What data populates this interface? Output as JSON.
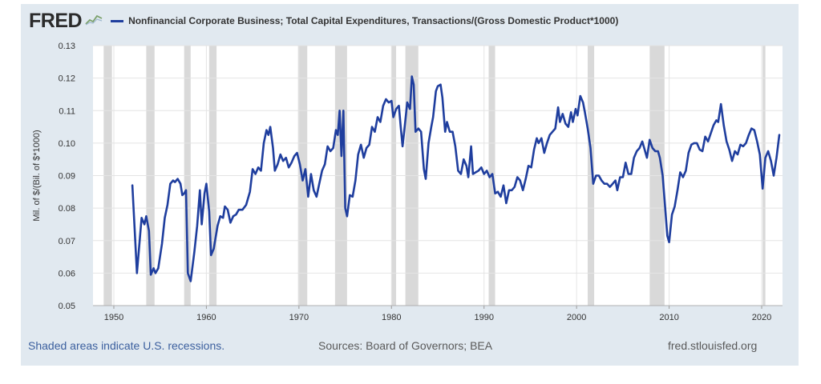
{
  "header": {
    "logo_text": "FRED",
    "series_title": "Nonfinancial Corporate Business; Total Capital Expenditures, Transactions/(Gross Domestic Product*1000)"
  },
  "footer": {
    "recession_note": "Shaded areas indicate U.S. recessions.",
    "sources": "Sources: Board of Governors; BEA",
    "site": "fred.stlouisfed.org"
  },
  "colors": {
    "line": "#1f3e9e",
    "recession": "#d9d9d9",
    "plot_bg": "#ffffff",
    "frame_bg": "#e1e9f0",
    "grid": "#e4e4e4"
  },
  "chart_data": {
    "type": "line",
    "title": "Nonfinancial Corporate Business; Total Capital Expenditures, Transactions/(Gross Domestic Product*1000)",
    "ylabel": "Mil. of $/(Bil. of $*1000)",
    "xlabel": "",
    "xlim": [
      1947.75,
      2022.25
    ],
    "ylim": [
      0.05,
      0.13
    ],
    "x_ticks": [
      1950,
      1960,
      1970,
      1980,
      1990,
      2000,
      2010,
      2020
    ],
    "y_ticks": [
      0.05,
      0.06,
      0.07,
      0.08,
      0.09,
      0.1,
      0.11,
      0.12,
      0.13
    ],
    "y_tick_labels": [
      "0.05",
      "0.06",
      "0.07",
      "0.08",
      "0.09",
      "0.10",
      "0.11",
      "0.12",
      "0.13"
    ],
    "grid": true,
    "recessions": [
      [
        1948.9,
        1949.8
      ],
      [
        1953.5,
        1954.4
      ],
      [
        1957.6,
        1958.3
      ],
      [
        1960.3,
        1961.1
      ],
      [
        1969.9,
        1970.9
      ],
      [
        1973.9,
        1975.2
      ],
      [
        1980.0,
        1980.5
      ],
      [
        1981.5,
        1982.9
      ],
      [
        1990.5,
        1991.2
      ],
      [
        2001.2,
        2001.9
      ],
      [
        2007.9,
        2009.5
      ],
      [
        2020.1,
        2020.4
      ]
    ],
    "series": [
      {
        "name": "Nonfinancial Corporate Business; Total Capital Expenditures, Transactions/(Gross Domestic Product*1000)",
        "points": [
          [
            1952.0,
            0.087
          ],
          [
            1952.5,
            0.06
          ],
          [
            1953.0,
            0.077
          ],
          [
            1953.3,
            0.075
          ],
          [
            1953.5,
            0.0775
          ],
          [
            1953.8,
            0.073
          ],
          [
            1954.0,
            0.0595
          ],
          [
            1954.3,
            0.0615
          ],
          [
            1954.5,
            0.06
          ],
          [
            1954.8,
            0.0615
          ],
          [
            1955.2,
            0.069
          ],
          [
            1955.5,
            0.077
          ],
          [
            1955.8,
            0.081
          ],
          [
            1956.1,
            0.0875
          ],
          [
            1956.4,
            0.0885
          ],
          [
            1956.6,
            0.088
          ],
          [
            1956.9,
            0.089
          ],
          [
            1957.2,
            0.0875
          ],
          [
            1957.4,
            0.084
          ],
          [
            1957.6,
            0.0845
          ],
          [
            1957.8,
            0.0855
          ],
          [
            1958.0,
            0.06
          ],
          [
            1958.3,
            0.0575
          ],
          [
            1958.7,
            0.0665
          ],
          [
            1959.0,
            0.0745
          ],
          [
            1959.3,
            0.0855
          ],
          [
            1959.5,
            0.075
          ],
          [
            1959.8,
            0.0845
          ],
          [
            1960.0,
            0.0875
          ],
          [
            1960.3,
            0.079
          ],
          [
            1960.5,
            0.0655
          ],
          [
            1960.8,
            0.0675
          ],
          [
            1961.2,
            0.0745
          ],
          [
            1961.5,
            0.0775
          ],
          [
            1961.8,
            0.077
          ],
          [
            1962.0,
            0.0805
          ],
          [
            1962.3,
            0.0795
          ],
          [
            1962.6,
            0.0755
          ],
          [
            1962.9,
            0.0775
          ],
          [
            1963.2,
            0.078
          ],
          [
            1963.5,
            0.0795
          ],
          [
            1963.9,
            0.0795
          ],
          [
            1964.3,
            0.081
          ],
          [
            1964.7,
            0.085
          ],
          [
            1965.0,
            0.092
          ],
          [
            1965.3,
            0.0905
          ],
          [
            1965.6,
            0.0925
          ],
          [
            1965.9,
            0.0915
          ],
          [
            1966.2,
            0.1
          ],
          [
            1966.5,
            0.104
          ],
          [
            1966.7,
            0.1025
          ],
          [
            1966.9,
            0.105
          ],
          [
            1967.2,
            0.0985
          ],
          [
            1967.4,
            0.0915
          ],
          [
            1967.7,
            0.0935
          ],
          [
            1968.0,
            0.0965
          ],
          [
            1968.3,
            0.0945
          ],
          [
            1968.6,
            0.0955
          ],
          [
            1968.9,
            0.0925
          ],
          [
            1969.2,
            0.094
          ],
          [
            1969.5,
            0.096
          ],
          [
            1969.8,
            0.097
          ],
          [
            1970.1,
            0.0935
          ],
          [
            1970.4,
            0.0885
          ],
          [
            1970.7,
            0.092
          ],
          [
            1971.0,
            0.0835
          ],
          [
            1971.3,
            0.0905
          ],
          [
            1971.6,
            0.0855
          ],
          [
            1971.9,
            0.0835
          ],
          [
            1972.2,
            0.0875
          ],
          [
            1972.5,
            0.0915
          ],
          [
            1972.8,
            0.0935
          ],
          [
            1973.1,
            0.099
          ],
          [
            1973.4,
            0.0975
          ],
          [
            1973.7,
            0.0985
          ],
          [
            1974.0,
            0.104
          ],
          [
            1974.2,
            0.1025
          ],
          [
            1974.4,
            0.11
          ],
          [
            1974.6,
            0.096
          ],
          [
            1974.8,
            0.11
          ],
          [
            1975.0,
            0.08
          ],
          [
            1975.2,
            0.0775
          ],
          [
            1975.5,
            0.084
          ],
          [
            1975.8,
            0.0835
          ],
          [
            1976.1,
            0.0885
          ],
          [
            1976.4,
            0.0965
          ],
          [
            1976.7,
            0.0995
          ],
          [
            1977.0,
            0.0955
          ],
          [
            1977.3,
            0.0985
          ],
          [
            1977.6,
            0.0995
          ],
          [
            1977.9,
            0.105
          ],
          [
            1978.2,
            0.1035
          ],
          [
            1978.5,
            0.108
          ],
          [
            1978.8,
            0.1065
          ],
          [
            1979.1,
            0.1115
          ],
          [
            1979.4,
            0.1135
          ],
          [
            1979.7,
            0.1125
          ],
          [
            1980.0,
            0.113
          ],
          [
            1980.2,
            0.108
          ],
          [
            1980.5,
            0.1105
          ],
          [
            1980.8,
            0.1115
          ],
          [
            1981.0,
            0.105
          ],
          [
            1981.2,
            0.099
          ],
          [
            1981.5,
            0.107
          ],
          [
            1981.7,
            0.1125
          ],
          [
            1982.0,
            0.1105
          ],
          [
            1982.2,
            0.1205
          ],
          [
            1982.4,
            0.118
          ],
          [
            1982.6,
            0.1035
          ],
          [
            1982.9,
            0.1045
          ],
          [
            1983.2,
            0.1035
          ],
          [
            1983.5,
            0.092
          ],
          [
            1983.7,
            0.089
          ],
          [
            1984.0,
            0.1
          ],
          [
            1984.3,
            0.105
          ],
          [
            1984.5,
            0.108
          ],
          [
            1984.8,
            0.116
          ],
          [
            1985.0,
            0.1175
          ],
          [
            1985.3,
            0.118
          ],
          [
            1985.5,
            0.114
          ],
          [
            1985.8,
            0.1035
          ],
          [
            1986.0,
            0.1065
          ],
          [
            1986.3,
            0.1035
          ],
          [
            1986.6,
            0.1035
          ],
          [
            1986.9,
            0.099
          ],
          [
            1987.2,
            0.0915
          ],
          [
            1987.5,
            0.0905
          ],
          [
            1987.8,
            0.095
          ],
          [
            1988.1,
            0.093
          ],
          [
            1988.3,
            0.0895
          ],
          [
            1988.6,
            0.099
          ],
          [
            1988.8,
            0.0905
          ],
          [
            1989.1,
            0.091
          ],
          [
            1989.4,
            0.0915
          ],
          [
            1989.7,
            0.0925
          ],
          [
            1990.0,
            0.0905
          ],
          [
            1990.3,
            0.0915
          ],
          [
            1990.6,
            0.0895
          ],
          [
            1990.9,
            0.0905
          ],
          [
            1991.2,
            0.0845
          ],
          [
            1991.5,
            0.085
          ],
          [
            1991.8,
            0.0835
          ],
          [
            1992.1,
            0.087
          ],
          [
            1992.4,
            0.0815
          ],
          [
            1992.7,
            0.0855
          ],
          [
            1993.0,
            0.0855
          ],
          [
            1993.3,
            0.0865
          ],
          [
            1993.6,
            0.0895
          ],
          [
            1993.9,
            0.0885
          ],
          [
            1994.2,
            0.0855
          ],
          [
            1994.5,
            0.089
          ],
          [
            1994.8,
            0.093
          ],
          [
            1995.1,
            0.0925
          ],
          [
            1995.4,
            0.098
          ],
          [
            1995.7,
            0.1015
          ],
          [
            1995.9,
            0.1
          ],
          [
            1996.2,
            0.1015
          ],
          [
            1996.5,
            0.097
          ],
          [
            1996.8,
            0.1
          ],
          [
            1997.1,
            0.1025
          ],
          [
            1997.4,
            0.1035
          ],
          [
            1997.7,
            0.1045
          ],
          [
            1998.0,
            0.111
          ],
          [
            1998.2,
            0.1065
          ],
          [
            1998.5,
            0.109
          ],
          [
            1998.8,
            0.106
          ],
          [
            1999.1,
            0.105
          ],
          [
            1999.4,
            0.1095
          ],
          [
            1999.6,
            0.1065
          ],
          [
            1999.9,
            0.1105
          ],
          [
            2000.1,
            0.1085
          ],
          [
            2000.4,
            0.1145
          ],
          [
            2000.7,
            0.1125
          ],
          [
            2000.9,
            0.1095
          ],
          [
            2001.2,
            0.1045
          ],
          [
            2001.5,
            0.0985
          ],
          [
            2001.8,
            0.0875
          ],
          [
            2002.1,
            0.09
          ],
          [
            2002.4,
            0.09
          ],
          [
            2002.7,
            0.0885
          ],
          [
            2003.0,
            0.0875
          ],
          [
            2003.3,
            0.0875
          ],
          [
            2003.6,
            0.0865
          ],
          [
            2003.9,
            0.0875
          ],
          [
            2004.2,
            0.0885
          ],
          [
            2004.4,
            0.0855
          ],
          [
            2004.7,
            0.0895
          ],
          [
            2005.0,
            0.0895
          ],
          [
            2005.3,
            0.094
          ],
          [
            2005.6,
            0.0905
          ],
          [
            2005.9,
            0.0905
          ],
          [
            2006.2,
            0.0955
          ],
          [
            2006.5,
            0.0975
          ],
          [
            2006.8,
            0.0985
          ],
          [
            2007.1,
            0.1005
          ],
          [
            2007.4,
            0.0975
          ],
          [
            2007.6,
            0.0955
          ],
          [
            2007.9,
            0.101
          ],
          [
            2008.2,
            0.0985
          ],
          [
            2008.5,
            0.0975
          ],
          [
            2008.8,
            0.0975
          ],
          [
            2009.0,
            0.0955
          ],
          [
            2009.3,
            0.09
          ],
          [
            2009.6,
            0.079
          ],
          [
            2009.8,
            0.0715
          ],
          [
            2010.0,
            0.0695
          ],
          [
            2010.3,
            0.078
          ],
          [
            2010.6,
            0.0805
          ],
          [
            2010.9,
            0.0855
          ],
          [
            2011.2,
            0.091
          ],
          [
            2011.5,
            0.0895
          ],
          [
            2011.8,
            0.0915
          ],
          [
            2012.1,
            0.097
          ],
          [
            2012.4,
            0.0995
          ],
          [
            2012.7,
            0.1
          ],
          [
            2013.0,
            0.1
          ],
          [
            2013.3,
            0.098
          ],
          [
            2013.6,
            0.0975
          ],
          [
            2013.9,
            0.102
          ],
          [
            2014.2,
            0.1005
          ],
          [
            2014.5,
            0.103
          ],
          [
            2014.8,
            0.1055
          ],
          [
            2015.1,
            0.107
          ],
          [
            2015.3,
            0.1065
          ],
          [
            2015.6,
            0.112
          ],
          [
            2015.9,
            0.1055
          ],
          [
            2016.2,
            0.1005
          ],
          [
            2016.5,
            0.098
          ],
          [
            2016.8,
            0.0945
          ],
          [
            2017.1,
            0.0975
          ],
          [
            2017.4,
            0.0965
          ],
          [
            2017.7,
            0.0995
          ],
          [
            2018.0,
            0.099
          ],
          [
            2018.3,
            0.1
          ],
          [
            2018.6,
            0.1025
          ],
          [
            2018.9,
            0.1045
          ],
          [
            2019.2,
            0.104
          ],
          [
            2019.5,
            0.1005
          ],
          [
            2019.8,
            0.0965
          ],
          [
            2020.1,
            0.086
          ],
          [
            2020.4,
            0.0955
          ],
          [
            2020.7,
            0.0975
          ],
          [
            2021.0,
            0.0945
          ],
          [
            2021.3,
            0.09
          ],
          [
            2021.6,
            0.0955
          ],
          [
            2021.9,
            0.1025
          ]
        ]
      }
    ]
  }
}
